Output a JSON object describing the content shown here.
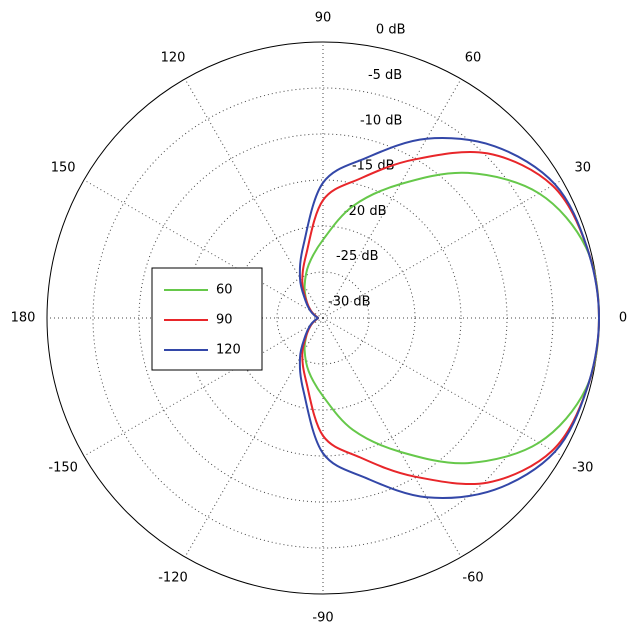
{
  "chart_data": {
    "type": "polar",
    "theta": [
      -180,
      -165,
      -150,
      -135,
      -120,
      -105,
      -90,
      -75,
      -60,
      -45,
      -30,
      -15,
      0,
      15,
      30,
      45,
      60,
      75,
      90,
      105,
      120,
      135,
      150,
      165,
      180
    ],
    "series": [
      {
        "name": "60",
        "color": "#66c84a",
        "values": [
          -29.5,
          -29.2,
          -28.5,
          -27.5,
          -26,
          -24,
          -21.5,
          -17.4,
          -13.2,
          -7.7,
          -2.9,
          -0.4,
          0,
          -0.4,
          -2.9,
          -7.7,
          -13.2,
          -17.4,
          -21.5,
          -24,
          -26,
          -27.5,
          -28.5,
          -29.2,
          -29.5
        ]
      },
      {
        "name": "90",
        "color": "#e8262a",
        "values": [
          -29.5,
          -29.2,
          -28.5,
          -27.5,
          -25.5,
          -22.9,
          -17.2,
          -14.3,
          -10.1,
          -4.7,
          -1.2,
          -0.3,
          0,
          -0.3,
          -1.2,
          -4.7,
          -10.1,
          -14.3,
          -17.2,
          -22.9,
          -25.5,
          -27.5,
          -28.5,
          -29.2,
          -29.5
        ]
      },
      {
        "name": "120",
        "color": "#3347a8",
        "values": [
          -29.5,
          -29.1,
          -28.4,
          -27.3,
          -25,
          -21.8,
          -15.3,
          -12,
          -7.5,
          -3.6,
          -0.9,
          -0.3,
          0,
          -0.3,
          -0.9,
          -3.6,
          -7.5,
          -12,
          -15.3,
          -21.8,
          -25,
          -27.3,
          -28.4,
          -29.1,
          -29.5
        ]
      }
    ],
    "rlim": [
      -30,
      0
    ],
    "rticks": [
      {
        "value": 0,
        "label": "0 dB"
      },
      {
        "value": -5,
        "label": "-5 dB"
      },
      {
        "value": -10,
        "label": "-10 dB"
      },
      {
        "value": -15,
        "label": "-15 dB"
      },
      {
        "value": -20,
        "label": "-20 dB"
      },
      {
        "value": -25,
        "label": "-25 dB"
      },
      {
        "value": -30,
        "label": "-30 dB"
      }
    ],
    "thetaticks": [
      0,
      30,
      60,
      90,
      120,
      150,
      180,
      -150,
      -120,
      -90,
      -60,
      -30
    ],
    "grid": true,
    "legend": "left"
  }
}
